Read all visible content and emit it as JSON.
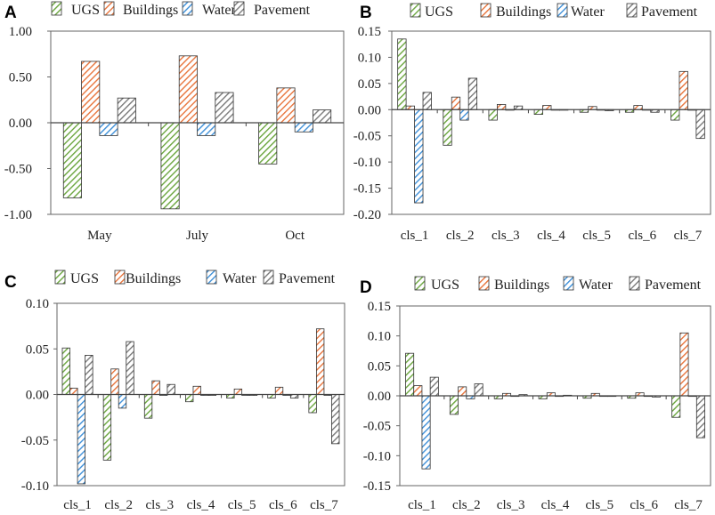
{
  "colors": {
    "UGS": "#6aa53d",
    "Buildings": "#e8743b",
    "Water": "#3d8fd8",
    "Pavement": "#7a7a7a"
  },
  "pattern_icon": "diagonal-hatch",
  "chart_data": [
    {
      "panel": "A",
      "type": "bar",
      "categories": [
        "May",
        "July",
        "Oct"
      ],
      "series": [
        {
          "name": "UGS",
          "values": [
            -0.82,
            -0.94,
            -0.45
          ]
        },
        {
          "name": "Buildings",
          "values": [
            0.67,
            0.73,
            0.38
          ]
        },
        {
          "name": "Water",
          "values": [
            -0.14,
            -0.14,
            -0.1
          ]
        },
        {
          "name": "Pavement",
          "values": [
            0.27,
            0.33,
            0.14
          ]
        }
      ],
      "ylim": [
        -1.0,
        1.0
      ],
      "yticks": [
        "1.00",
        "0.50",
        "0.00",
        "-0.50",
        "-1.00"
      ],
      "ytick_values": [
        1.0,
        0.5,
        0.0,
        -0.5,
        -1.0
      ],
      "xlabel": "",
      "ylabel": "",
      "grid": false,
      "legend": "top",
      "xtick_position": "bottom"
    },
    {
      "panel": "B",
      "type": "bar",
      "categories": [
        "cls_1",
        "cls_2",
        "cls_3",
        "cls_4",
        "cls_5",
        "cls_6",
        "cls_7"
      ],
      "series": [
        {
          "name": "UGS",
          "values": [
            0.135,
            -0.068,
            -0.02,
            -0.009,
            -0.005,
            -0.005,
            -0.02
          ]
        },
        {
          "name": "Buildings",
          "values": [
            0.007,
            0.024,
            0.01,
            0.008,
            0.006,
            0.008,
            0.073
          ]
        },
        {
          "name": "Water",
          "values": [
            -0.178,
            -0.02,
            -0.001,
            -0.001,
            -0.001,
            -0.001,
            -0.001
          ]
        },
        {
          "name": "Pavement",
          "values": [
            0.033,
            0.06,
            0.007,
            -0.001,
            -0.002,
            -0.005,
            -0.055
          ]
        }
      ],
      "ylim": [
        -0.2,
        0.15
      ],
      "yticks": [
        "0.15",
        "0.10",
        "0.05",
        "0.00",
        "-0.05",
        "-0.10",
        "-0.15",
        "-0.20"
      ],
      "ytick_values": [
        0.15,
        0.1,
        0.05,
        0.0,
        -0.05,
        -0.1,
        -0.15,
        -0.2
      ],
      "xlabel": "",
      "ylabel": "",
      "grid": false,
      "legend": "top",
      "xtick_position": "bottom"
    },
    {
      "panel": "C",
      "type": "bar",
      "categories": [
        "cls_1",
        "cls_2",
        "cls_3",
        "cls_4",
        "cls_5",
        "cls_6",
        "cls_7"
      ],
      "series": [
        {
          "name": "UGS",
          "values": [
            0.051,
            -0.072,
            -0.026,
            -0.008,
            -0.004,
            -0.004,
            -0.02
          ]
        },
        {
          "name": "Buildings",
          "values": [
            0.007,
            0.028,
            0.015,
            0.009,
            0.006,
            0.008,
            0.072
          ]
        },
        {
          "name": "Water",
          "values": [
            -0.098,
            -0.015,
            -0.001,
            -0.001,
            -0.001,
            -0.001,
            -0.001
          ]
        },
        {
          "name": "Pavement",
          "values": [
            0.043,
            0.058,
            0.011,
            -0.001,
            -0.001,
            -0.004,
            -0.054
          ]
        }
      ],
      "ylim": [
        -0.1,
        0.1
      ],
      "yticks": [
        "0.10",
        "0.05",
        "0.00",
        "-0.05",
        "-0.10"
      ],
      "ytick_values": [
        0.1,
        0.05,
        0.0,
        -0.05,
        -0.1
      ],
      "xlabel": "",
      "ylabel": "",
      "grid": false,
      "legend": "top",
      "xtick_position": "bottom"
    },
    {
      "panel": "D",
      "type": "bar",
      "categories": [
        "cls_1",
        "cls_2",
        "cls_3",
        "cls_4",
        "cls_5",
        "cls_6",
        "cls_7"
      ],
      "series": [
        {
          "name": "UGS",
          "values": [
            0.071,
            -0.031,
            -0.005,
            -0.005,
            -0.004,
            -0.004,
            -0.036
          ]
        },
        {
          "name": "Buildings",
          "values": [
            0.017,
            0.015,
            0.004,
            0.005,
            0.004,
            0.005,
            0.105
          ]
        },
        {
          "name": "Water",
          "values": [
            -0.122,
            -0.005,
            -0.001,
            -0.001,
            -0.001,
            -0.001,
            -0.001
          ]
        },
        {
          "name": "Pavement",
          "values": [
            0.031,
            0.02,
            0.002,
            0.001,
            -0.001,
            -0.002,
            -0.07
          ]
        }
      ],
      "ylim": [
        -0.15,
        0.15
      ],
      "yticks": [
        "0.15",
        "0.10",
        "0.05",
        "0.00",
        "-0.05",
        "-0.10",
        "-0.15"
      ],
      "ytick_values": [
        0.15,
        0.1,
        0.05,
        0.0,
        -0.05,
        -0.1,
        -0.15
      ],
      "xlabel": "",
      "ylabel": "",
      "grid": false,
      "legend": "top",
      "xtick_position": "bottom"
    }
  ]
}
